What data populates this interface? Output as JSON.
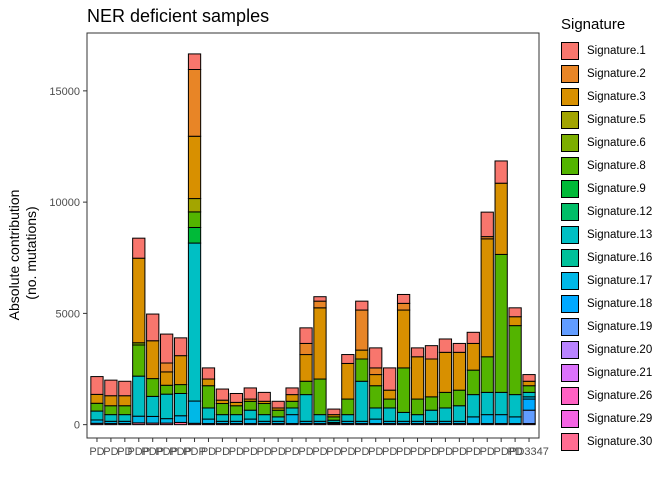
{
  "chart_data": {
    "type": "bar",
    "stacked": true,
    "title": "NER deficient samples",
    "xlabel": "",
    "ylabel": [
      "Absolute contribution",
      "(no. mutations)"
    ],
    "ylim": [
      -600,
      17600
    ],
    "yticks": [
      0,
      5000,
      10000,
      15000
    ],
    "grid": false,
    "legend_title": "Signature",
    "legend_position": "right",
    "categories": [
      "PD1",
      "PD2",
      "PD3",
      "PD4",
      "PD5",
      "PD6",
      "PD7",
      "PD8",
      "PD9",
      "PD10",
      "PD11",
      "PD12",
      "PD13",
      "PD14",
      "PD15",
      "PD16",
      "PD17",
      "PD18",
      "PD19",
      "PD20",
      "PD21",
      "PD22",
      "PD23",
      "PD24",
      "PD25",
      "PD26",
      "PD27",
      "PD28",
      "PD29",
      "PD30",
      "PD31",
      "PD32"
    ],
    "tick_labels": [
      "PD",
      "PD",
      "PD",
      "PDP",
      "PDP",
      "PDP",
      "PDP",
      "PDP",
      "PD",
      "PD",
      "PD",
      "PD",
      "PD",
      "PD",
      "PD",
      "PD",
      "PD",
      "PD",
      "PD",
      "PD",
      "PD",
      "PD",
      "PD",
      "PD",
      "PD",
      "PD",
      "PD",
      "PD",
      "PD",
      "PD",
      "PD",
      "PD3347"
    ],
    "series": [
      {
        "name": "Signature.30",
        "color": "#FF6C91",
        "values": [
          60,
          50,
          50,
          80,
          70,
          70,
          100,
          60,
          50,
          50,
          50,
          50,
          50,
          50,
          50,
          50,
          50,
          50,
          50,
          50,
          50,
          50,
          50,
          50,
          50,
          50,
          50,
          50,
          50,
          50,
          50,
          50
        ]
      },
      {
        "name": "Signature.29",
        "color": "#F564E3",
        "values": [
          0,
          0,
          0,
          0,
          0,
          0,
          0,
          0,
          0,
          0,
          0,
          0,
          0,
          0,
          0,
          0,
          0,
          0,
          0,
          0,
          0,
          0,
          0,
          0,
          0,
          0,
          0,
          0,
          0,
          0,
          0,
          0
        ]
      },
      {
        "name": "Signature.26",
        "color": "#FF61C3",
        "values": [
          0,
          0,
          0,
          0,
          0,
          0,
          0,
          0,
          0,
          0,
          0,
          0,
          0,
          0,
          0,
          0,
          0,
          0,
          0,
          0,
          0,
          0,
          0,
          0,
          0,
          0,
          0,
          0,
          0,
          0,
          0,
          0
        ]
      },
      {
        "name": "Signature.21",
        "color": "#DB72FB",
        "values": [
          0,
          0,
          0,
          0,
          0,
          0,
          0,
          0,
          0,
          0,
          0,
          0,
          0,
          0,
          0,
          0,
          0,
          0,
          0,
          0,
          0,
          0,
          0,
          0,
          0,
          0,
          0,
          0,
          0,
          0,
          0,
          0
        ]
      },
      {
        "name": "Signature.20",
        "color": "#B983FF",
        "values": [
          0,
          0,
          0,
          0,
          0,
          0,
          0,
          0,
          0,
          0,
          0,
          0,
          0,
          0,
          0,
          0,
          0,
          0,
          0,
          0,
          0,
          0,
          0,
          0,
          0,
          0,
          0,
          0,
          0,
          0,
          0,
          0
        ]
      },
      {
        "name": "Signature.19",
        "color": "#619CFF",
        "values": [
          0,
          0,
          0,
          0,
          0,
          0,
          0,
          0,
          0,
          0,
          0,
          0,
          0,
          0,
          0,
          0,
          0,
          0,
          0,
          0,
          0,
          0,
          0,
          0,
          0,
          0,
          0,
          0,
          0,
          0,
          0,
          600
        ]
      },
      {
        "name": "Signature.18",
        "color": "#00A9FF",
        "values": [
          0,
          0,
          0,
          0,
          0,
          0,
          0,
          0,
          0,
          0,
          0,
          0,
          0,
          0,
          0,
          0,
          0,
          0,
          0,
          0,
          0,
          0,
          0,
          0,
          0,
          0,
          0,
          0,
          0,
          0,
          0,
          500
        ]
      },
      {
        "name": "Signature.17",
        "color": "#00B8E7",
        "values": [
          150,
          100,
          100,
          300,
          300,
          200,
          300,
          1000,
          200,
          100,
          100,
          200,
          100,
          100,
          400,
          100,
          100,
          50,
          100,
          100,
          200,
          100,
          100,
          100,
          100,
          100,
          100,
          300,
          400,
          400,
          300,
          100
        ]
      },
      {
        "name": "Signature.16",
        "color": "#00C19A",
        "values": [
          0,
          0,
          0,
          0,
          0,
          0,
          0,
          0,
          0,
          0,
          0,
          0,
          0,
          0,
          0,
          0,
          0,
          0,
          0,
          0,
          0,
          0,
          0,
          0,
          0,
          0,
          0,
          0,
          0,
          0,
          0,
          0
        ]
      },
      {
        "name": "Signature.13",
        "color": "#00BFC4",
        "values": [
          400,
          300,
          300,
          1800,
          900,
          1100,
          1000,
          7100,
          500,
          300,
          300,
          400,
          300,
          200,
          300,
          1200,
          300,
          100,
          300,
          1800,
          500,
          600,
          400,
          300,
          500,
          600,
          700,
          1000,
          1000,
          1000,
          1000,
          200
        ]
      },
      {
        "name": "Signature.12",
        "color": "#00BE67",
        "values": [
          0,
          0,
          0,
          0,
          0,
          0,
          0,
          0,
          0,
          0,
          0,
          0,
          0,
          0,
          0,
          0,
          0,
          0,
          0,
          0,
          0,
          0,
          0,
          0,
          0,
          0,
          0,
          0,
          0,
          0,
          0,
          0
        ]
      },
      {
        "name": "Signature.9",
        "color": "#00BA38",
        "values": [
          0,
          0,
          0,
          0,
          0,
          0,
          0,
          700,
          0,
          0,
          0,
          0,
          0,
          0,
          0,
          0,
          0,
          0,
          0,
          0,
          0,
          0,
          0,
          0,
          0,
          0,
          0,
          0,
          0,
          0,
          0,
          0
        ]
      },
      {
        "name": "Signature.8",
        "color": "#53B400",
        "values": [
          350,
          400,
          400,
          1400,
          800,
          400,
          400,
          700,
          1000,
          500,
          400,
          400,
          500,
          300,
          300,
          600,
          1600,
          150,
          700,
          1000,
          1000,
          400,
          2000,
          700,
          600,
          700,
          700,
          1100,
          1600,
          6200,
          3100,
          300
        ]
      },
      {
        "name": "Signature.6",
        "color": "#7CAE00",
        "values": [
          0,
          0,
          0,
          100,
          0,
          0,
          0,
          0,
          0,
          0,
          0,
          0,
          0,
          0,
          0,
          0,
          0,
          0,
          0,
          0,
          0,
          0,
          0,
          0,
          0,
          0,
          0,
          0,
          0,
          0,
          0,
          0
        ]
      },
      {
        "name": "Signature.5",
        "color": "#A3A500",
        "values": [
          0,
          0,
          0,
          0,
          0,
          0,
          0,
          600,
          0,
          0,
          0,
          0,
          0,
          0,
          0,
          0,
          0,
          0,
          0,
          0,
          0,
          0,
          0,
          0,
          0,
          0,
          0,
          0,
          0,
          0,
          0,
          0
        ]
      },
      {
        "name": "Signature.3",
        "color": "#D89000",
        "values": [
          400,
          450,
          450,
          3800,
          1700,
          600,
          1300,
          2800,
          300,
          150,
          150,
          100,
          100,
          100,
          300,
          1200,
          3200,
          100,
          1600,
          400,
          500,
          400,
          2600,
          1900,
          1700,
          1800,
          1700,
          1200,
          5300,
          3200,
          400,
          200
        ]
      },
      {
        "name": "Signature.2",
        "color": "#E88526",
        "values": [
          0,
          0,
          0,
          0,
          0,
          400,
          0,
          3000,
          0,
          0,
          0,
          0,
          0,
          0,
          0,
          500,
          300,
          0,
          0,
          1800,
          300,
          0,
          300,
          0,
          0,
          0,
          0,
          0,
          100,
          0,
          0,
          0
        ]
      },
      {
        "name": "Signature.1",
        "color": "#F8766D",
        "values": [
          800,
          700,
          650,
          900,
          1200,
          1300,
          800,
          700,
          500,
          500,
          400,
          500,
          400,
          300,
          300,
          700,
          200,
          250,
          400,
          400,
          900,
          1000,
          400,
          400,
          600,
          600,
          400,
          500,
          1100,
          1000,
          400,
          300
        ]
      }
    ]
  }
}
